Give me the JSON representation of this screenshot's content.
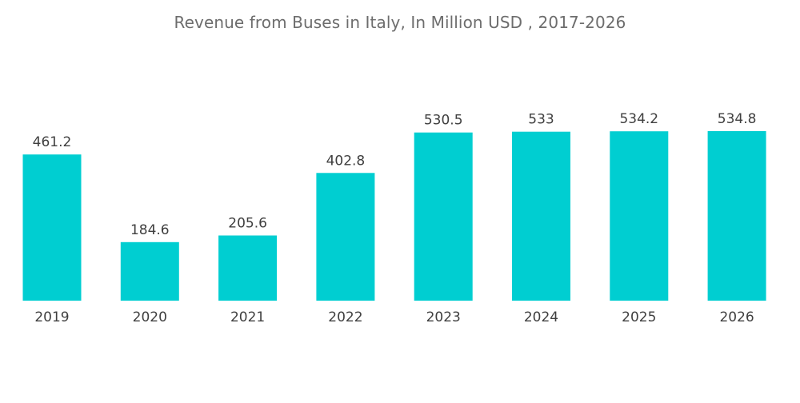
{
  "chart_data": {
    "type": "bar",
    "title": "Revenue from Buses in Italy, In Million USD , 2017-2026",
    "xlabel": "",
    "ylabel": "",
    "categories": [
      "2019",
      "2020",
      "2021",
      "2022",
      "2023",
      "2024",
      "2025",
      "2026"
    ],
    "values": [
      461.2,
      184.6,
      205.6,
      402.8,
      530.5,
      533,
      534.2,
      534.8
    ],
    "value_labels": [
      "461.2",
      "184.6",
      "205.6",
      "402.8",
      "530.5",
      "533",
      "534.2",
      "534.8"
    ],
    "ylim": [
      0,
      534.8
    ],
    "grid": false,
    "legend": "none",
    "bar_color": "#00ced1"
  }
}
